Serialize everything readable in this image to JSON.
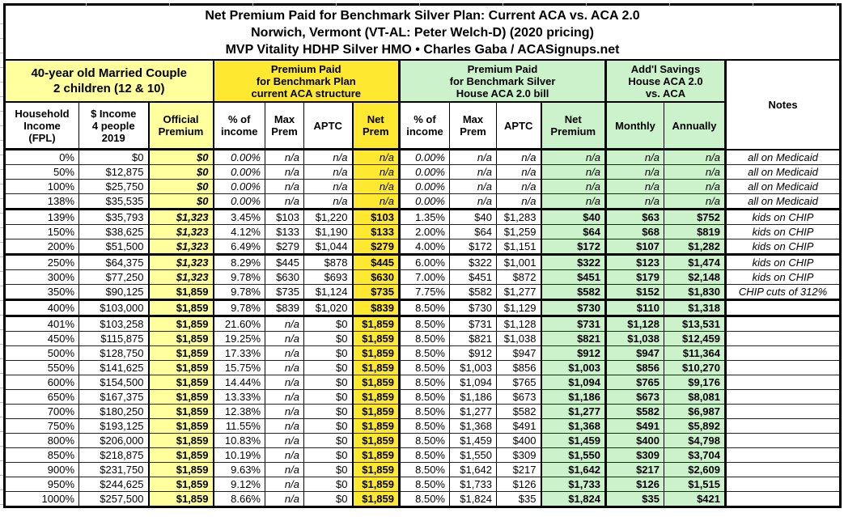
{
  "title": {
    "line1": "Net Premium Paid for Benchmark Silver Plan: Current ACA vs. ACA 2.0",
    "line2": "Norwich, Vermont (VT-AL: Peter Welch-D) (2020 pricing)",
    "line3": "MVP Vitality HDHP Silver HMO • Charles Gaba / ACASignups.net"
  },
  "header": {
    "family": "40-year old Married Couple\n2 children (12 & 10)",
    "aca_group": "Premium Paid\nfor Benchmark Plan\ncurrent ACA structure",
    "aca2_group": "Premium Paid\nfor Benchmark Silver\nHouse ACA 2.0 bill",
    "savings_group": "Add'l Savings\nHouse ACA 2.0\nvs. ACA",
    "notes_label": "Notes",
    "columns": [
      "Household\nIncome\n(FPL)",
      "$ Income\n4 people\n2019",
      "Official\nPremium",
      "% of\nincome",
      "Max\nPrem",
      "APTC",
      "Net\nPrem",
      "% of\nincome",
      "Max\nPrem",
      "APTC",
      "Net\nPremium",
      "Monthly",
      "Annually"
    ]
  },
  "colors": {
    "bright_yellow": "#ffe830",
    "light_yellow": "#ffff9e",
    "light_green": "#ccf2cc"
  },
  "table": {
    "rows": [
      {
        "cells": [
          "0%",
          "$0",
          "$0",
          "0.00%",
          "n/a",
          "n/a",
          "n/a",
          "0.00%",
          "n/a",
          "n/a",
          "n/a",
          "n/a",
          "n/a",
          "all on Medicaid"
        ],
        "official_italic": true,
        "pct_italic": true,
        "group_end": false
      },
      {
        "cells": [
          "50%",
          "$12,875",
          "$0",
          "0.00%",
          "n/a",
          "n/a",
          "n/a",
          "0.00%",
          "n/a",
          "n/a",
          "n/a",
          "n/a",
          "n/a",
          "all on Medicaid"
        ],
        "official_italic": true,
        "pct_italic": true,
        "group_end": false
      },
      {
        "cells": [
          "100%",
          "$25,750",
          "$0",
          "0.00%",
          "n/a",
          "n/a",
          "n/a",
          "0.00%",
          "n/a",
          "n/a",
          "n/a",
          "n/a",
          "n/a",
          "all on Medicaid"
        ],
        "official_italic": true,
        "pct_italic": true,
        "group_end": false
      },
      {
        "cells": [
          "138%",
          "$35,535",
          "$0",
          "0.00%",
          "n/a",
          "n/a",
          "n/a",
          "0.00%",
          "n/a",
          "n/a",
          "n/a",
          "n/a",
          "n/a",
          "all on Medicaid"
        ],
        "official_italic": true,
        "pct_italic": true,
        "group_end": true
      },
      {
        "cells": [
          "139%",
          "$35,793",
          "$1,323",
          "3.45%",
          "$103",
          "$1,220",
          "$103",
          "1.35%",
          "$40",
          "$1,283",
          "$40",
          "$63",
          "$752",
          "kids on CHIP"
        ],
        "official_italic": true,
        "pct_italic": false,
        "group_end": false
      },
      {
        "cells": [
          "150%",
          "$38,625",
          "$1,323",
          "4.12%",
          "$133",
          "$1,190",
          "$133",
          "2.00%",
          "$64",
          "$1,259",
          "$64",
          "$68",
          "$819",
          "kids on CHIP"
        ],
        "official_italic": true,
        "pct_italic": false,
        "group_end": false
      },
      {
        "cells": [
          "200%",
          "$51,500",
          "$1,323",
          "6.49%",
          "$279",
          "$1,044",
          "$279",
          "4.00%",
          "$172",
          "$1,151",
          "$172",
          "$107",
          "$1,282",
          "kids on CHIP"
        ],
        "official_italic": true,
        "pct_italic": false,
        "group_end": true
      },
      {
        "cells": [
          "250%",
          "$64,375",
          "$1,323",
          "8.29%",
          "$445",
          "$878",
          "$445",
          "6.00%",
          "$322",
          "$1,001",
          "$322",
          "$123",
          "$1,474",
          "kids on CHIP"
        ],
        "official_italic": true,
        "pct_italic": false,
        "group_end": false
      },
      {
        "cells": [
          "300%",
          "$77,250",
          "$1,323",
          "9.78%",
          "$630",
          "$693",
          "$630",
          "7.00%",
          "$451",
          "$872",
          "$451",
          "$179",
          "$2,148",
          "kids on CHIP"
        ],
        "official_italic": true,
        "pct_italic": false,
        "group_end": false
      },
      {
        "cells": [
          "350%",
          "$90,125",
          "$1,859",
          "9.78%",
          "$735",
          "$1,124",
          "$735",
          "7.75%",
          "$582",
          "$1,277",
          "$582",
          "$152",
          "$1,830",
          "CHIP cuts of 312%"
        ],
        "official_italic": false,
        "pct_italic": false,
        "group_end": true
      },
      {
        "cells": [
          "400%",
          "$103,000",
          "$1,859",
          "9.78%",
          "$839",
          "$1,020",
          "$839",
          "8.50%",
          "$730",
          "$1,129",
          "$730",
          "$110",
          "$1,318",
          ""
        ],
        "official_italic": false,
        "pct_italic": false,
        "group_end": true
      },
      {
        "cells": [
          "401%",
          "$103,258",
          "$1,859",
          "21.60%",
          "n/a",
          "$0",
          "$1,859",
          "8.50%",
          "$731",
          "$1,128",
          "$731",
          "$1,128",
          "$13,531",
          ""
        ],
        "official_italic": false,
        "pct_italic": false,
        "group_end": false
      },
      {
        "cells": [
          "450%",
          "$115,875",
          "$1,859",
          "19.25%",
          "n/a",
          "$0",
          "$1,859",
          "8.50%",
          "$821",
          "$1,038",
          "$821",
          "$1,038",
          "$12,459",
          ""
        ],
        "official_italic": false,
        "pct_italic": false,
        "group_end": false
      },
      {
        "cells": [
          "500%",
          "$128,750",
          "$1,859",
          "17.33%",
          "n/a",
          "$0",
          "$1,859",
          "8.50%",
          "$912",
          "$947",
          "$912",
          "$947",
          "$11,364",
          ""
        ],
        "official_italic": false,
        "pct_italic": false,
        "group_end": false
      },
      {
        "cells": [
          "550%",
          "$141,625",
          "$1,859",
          "15.75%",
          "n/a",
          "$0",
          "$1,859",
          "8.50%",
          "$1,003",
          "$856",
          "$1,003",
          "$856",
          "$10,270",
          ""
        ],
        "official_italic": false,
        "pct_italic": false,
        "group_end": false
      },
      {
        "cells": [
          "600%",
          "$154,500",
          "$1,859",
          "14.44%",
          "n/a",
          "$0",
          "$1,859",
          "8.50%",
          "$1,094",
          "$765",
          "$1,094",
          "$765",
          "$9,176",
          ""
        ],
        "official_italic": false,
        "pct_italic": false,
        "group_end": false
      },
      {
        "cells": [
          "650%",
          "$167,375",
          "$1,859",
          "13.33%",
          "n/a",
          "$0",
          "$1,859",
          "8.50%",
          "$1,186",
          "$673",
          "$1,186",
          "$673",
          "$8,081",
          ""
        ],
        "official_italic": false,
        "pct_italic": false,
        "group_end": false
      },
      {
        "cells": [
          "700%",
          "$180,250",
          "$1,859",
          "12.38%",
          "n/a",
          "$0",
          "$1,859",
          "8.50%",
          "$1,277",
          "$582",
          "$1,277",
          "$582",
          "$6,987",
          ""
        ],
        "official_italic": false,
        "pct_italic": false,
        "group_end": false
      },
      {
        "cells": [
          "750%",
          "$193,125",
          "$1,859",
          "11.55%",
          "n/a",
          "$0",
          "$1,859",
          "8.50%",
          "$1,368",
          "$491",
          "$1,368",
          "$491",
          "$5,892",
          ""
        ],
        "official_italic": false,
        "pct_italic": false,
        "group_end": false
      },
      {
        "cells": [
          "800%",
          "$206,000",
          "$1,859",
          "10.83%",
          "n/a",
          "$0",
          "$1,859",
          "8.50%",
          "$1,459",
          "$400",
          "$1,459",
          "$400",
          "$4,798",
          ""
        ],
        "official_italic": false,
        "pct_italic": false,
        "group_end": false
      },
      {
        "cells": [
          "850%",
          "$218,875",
          "$1,859",
          "10.19%",
          "n/a",
          "$0",
          "$1,859",
          "8.50%",
          "$1,550",
          "$309",
          "$1,550",
          "$309",
          "$3,704",
          ""
        ],
        "official_italic": false,
        "pct_italic": false,
        "group_end": false
      },
      {
        "cells": [
          "900%",
          "$231,750",
          "$1,859",
          "9.63%",
          "n/a",
          "$0",
          "$1,859",
          "8.50%",
          "$1,642",
          "$217",
          "$1,642",
          "$217",
          "$2,609",
          ""
        ],
        "official_italic": false,
        "pct_italic": false,
        "group_end": false
      },
      {
        "cells": [
          "950%",
          "$244,625",
          "$1,859",
          "9.12%",
          "n/a",
          "$0",
          "$1,859",
          "8.50%",
          "$1,733",
          "$126",
          "$1,733",
          "$126",
          "$1,515",
          ""
        ],
        "official_italic": false,
        "pct_italic": false,
        "group_end": false
      },
      {
        "cells": [
          "1000%",
          "$257,500",
          "$1,859",
          "8.66%",
          "n/a",
          "$0",
          "$1,859",
          "8.50%",
          "$1,824",
          "$35",
          "$1,824",
          "$35",
          "$421",
          ""
        ],
        "official_italic": false,
        "pct_italic": false,
        "group_end": false
      }
    ]
  }
}
